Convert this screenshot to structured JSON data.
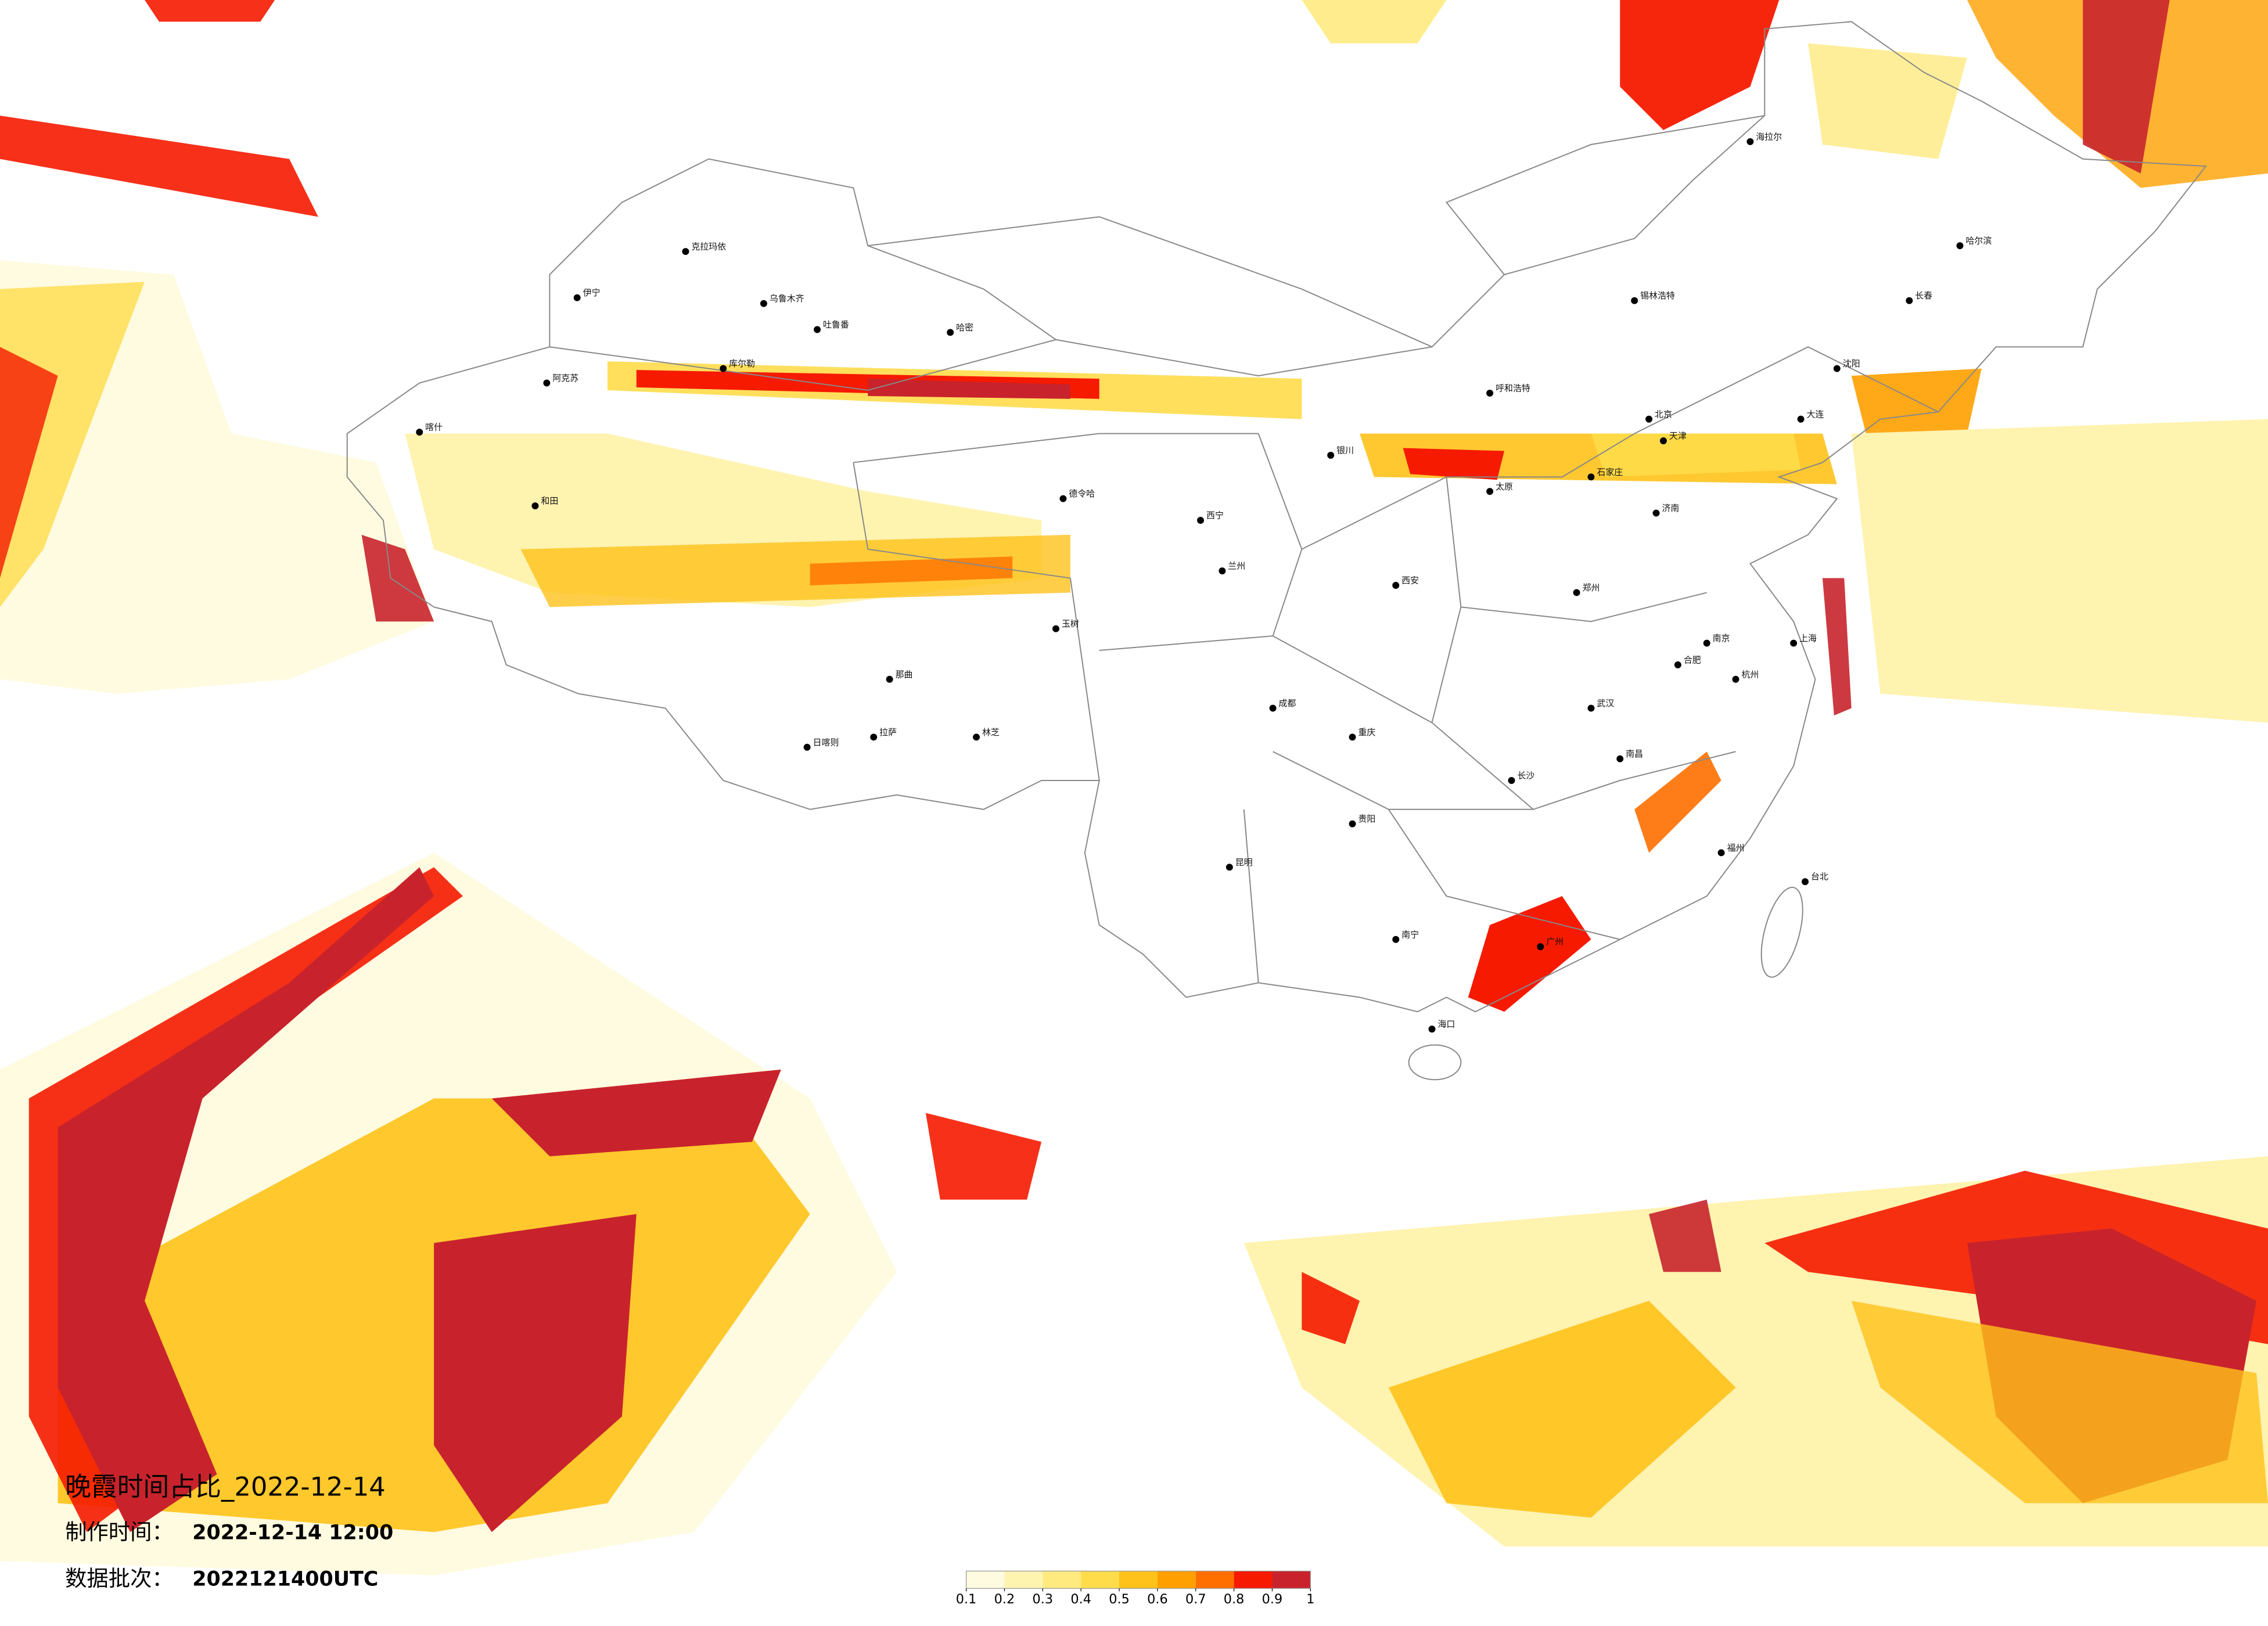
{
  "title": "晚霞时间占比_2022-12-14",
  "made_label": "制作时间：",
  "made_value": "2022-12-14 12:00",
  "batch_label": "数据批次：",
  "batch_value": "2022121400UTC",
  "legend": {
    "ticks": [
      0.1,
      0.2,
      0.3,
      0.4,
      0.5,
      0.6,
      0.7,
      0.8,
      0.9,
      1
    ],
    "colors": [
      "#fffbe0",
      "#fff3b0",
      "#ffea80",
      "#ffdc4a",
      "#ffc21a",
      "#ffa000",
      "#ff6f00",
      "#f51a00",
      "#c8232c"
    ]
  },
  "cities": [
    "克拉玛依",
    "伊宁",
    "乌鲁木齐",
    "吐鲁番",
    "哈密",
    "库尔勒",
    "阿克苏",
    "喀什",
    "和田",
    "德令哈",
    "玉树",
    "那曲",
    "拉萨",
    "日喀则",
    "林芝",
    "西宁",
    "兰州",
    "银川",
    "呼和浩特",
    "锡林浩特",
    "北京",
    "天津",
    "石家庄",
    "太原",
    "济南",
    "郑州",
    "西安",
    "成都",
    "重庆",
    "贵阳",
    "昆明",
    "南宁",
    "广州",
    "长沙",
    "武汉",
    "南昌",
    "福州",
    "杭州",
    "上海",
    "南京",
    "合肥",
    "哈尔滨",
    "长春",
    "沈阳",
    "大连",
    "海拉尔",
    "海口",
    "台北"
  ]
}
